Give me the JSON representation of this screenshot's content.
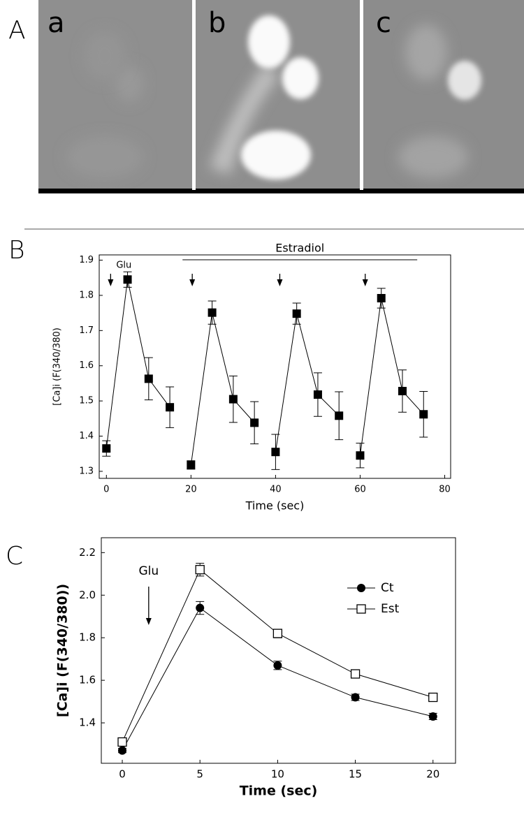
{
  "panel_labels": [
    "A",
    "B",
    "C"
  ],
  "image_labels": [
    "a",
    "b",
    "c"
  ],
  "chart_data": [
    {
      "type": "line",
      "xlabel": "Time (sec)",
      "ylabel": "[Ca]i (F(340/380)",
      "xlim": [
        -1.7,
        81.4
      ],
      "ylim": [
        1.28,
        1.915
      ],
      "xticks": [
        0,
        20,
        40,
        60,
        80
      ],
      "yticks": [
        1.3,
        1.4,
        1.5,
        1.6,
        1.7,
        1.8,
        1.9
      ],
      "series": [
        {
          "color": "#000000",
          "marker": "square",
          "x": [
            0,
            5,
            10,
            15
          ],
          "values": [
            1.365,
            1.845,
            1.563,
            1.482
          ],
          "errors": [
            0.022,
            0.022,
            0.06,
            0.058
          ]
        },
        {
          "color": "#000000",
          "marker": "square",
          "x": [
            20,
            25,
            30,
            35
          ],
          "values": [
            1.318,
            1.751,
            1.505,
            1.438
          ],
          "errors": [
            0.012,
            0.033,
            0.066,
            0.06
          ]
        },
        {
          "color": "#000000",
          "marker": "square",
          "x": [
            40,
            45,
            50,
            55
          ],
          "values": [
            1.355,
            1.748,
            1.518,
            1.458
          ],
          "errors": [
            0.05,
            0.03,
            0.062,
            0.068
          ]
        },
        {
          "color": "#000000",
          "marker": "square",
          "x": [
            60,
            65,
            70,
            75
          ],
          "values": [
            1.345,
            1.792,
            1.528,
            1.462
          ],
          "errors": [
            0.035,
            0.028,
            0.06,
            0.065
          ]
        }
      ],
      "arrows": [
        {
          "x": 1,
          "label": "Glu"
        },
        {
          "x": 20.3
        },
        {
          "x": 41
        },
        {
          "x": 61.2
        }
      ],
      "span": {
        "label": "Estradiol",
        "x": [
          18,
          73.5
        ]
      }
    },
    {
      "type": "line",
      "xlabel": "Time (sec)",
      "ylabel": "[Ca]i (F(340/380))",
      "xlim": [
        -1.35,
        21.45
      ],
      "ylim": [
        1.21,
        2.27
      ],
      "xticks": [
        0,
        5,
        10,
        15,
        20
      ],
      "yticks": [
        1.4,
        1.6,
        1.8,
        {
          "value": 2,
          "label": "2.0"
        },
        2.2
      ],
      "legend": "upper right",
      "series": [
        {
          "name": "Ct",
          "color": "#000000",
          "marker": "circle",
          "x": [
            0,
            5,
            10,
            15,
            20
          ],
          "values": [
            1.27,
            1.94,
            1.67,
            1.52,
            1.43
          ],
          "errors": [
            0.01,
            0.03,
            0.02,
            0.015,
            0.015
          ]
        },
        {
          "name": "Est",
          "color": "#000000",
          "marker": "open-square",
          "x": [
            0,
            5,
            10,
            15,
            20
          ],
          "values": [
            1.31,
            2.12,
            1.82,
            1.63,
            1.52
          ],
          "errors": [
            0.01,
            0.03,
            0.02,
            0.012,
            0.012
          ]
        }
      ],
      "arrows": [
        {
          "x": 1.7,
          "label": "Glu"
        }
      ]
    }
  ]
}
